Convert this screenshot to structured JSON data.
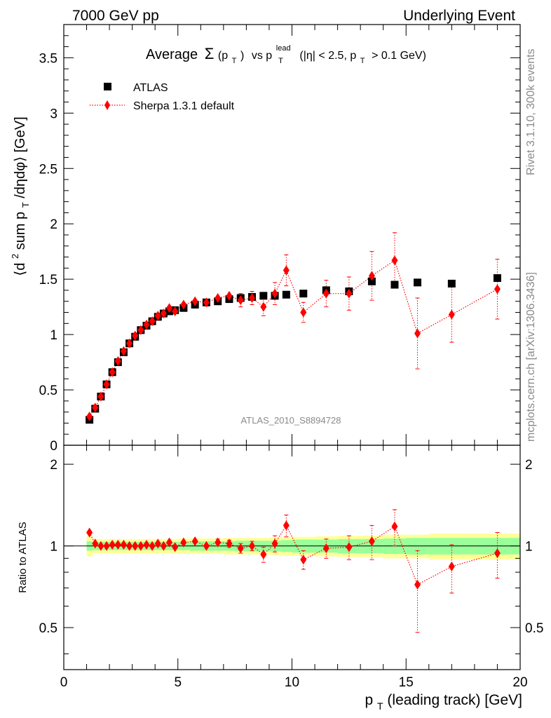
{
  "header": {
    "left": "7000 GeV pp",
    "right": "Underlying Event"
  },
  "side_labels": {
    "top": "Rivet 3.1.10,  300k events",
    "bottom": "mcplots.cern.ch [arXiv:1306.3436]"
  },
  "title": {
    "prefix": "Average",
    "sigma": "Σ",
    "pt_arg": "(p",
    "pt_sub": "T",
    "pt_close": ")",
    "vs": "vs p",
    "lead_sup": "lead",
    "lead_sub": "T",
    "cuts_a": "(|η| < 2.5, p",
    "cuts_sub": "T",
    "cuts_b": "> 0.1 GeV)"
  },
  "analysis_id": "ATLAS_2010_S8894728",
  "chart_data": [
    {
      "type": "scatter",
      "panel": "main",
      "ylabel_parts": {
        "a": "⟨d",
        "sup": "2",
        "b": " sum p",
        "sub": "T",
        "c": "/dηdφ⟩ [GeV]"
      },
      "xlim": [
        0,
        20
      ],
      "ylim": [
        0,
        3.8
      ],
      "y_ticks": [
        "0",
        "0.5",
        "1",
        "1.5",
        "2",
        "2.5",
        "3",
        "3.5"
      ],
      "legend_position": "top-left",
      "series": [
        {
          "name": "ATLAS",
          "marker": "square",
          "color": "#000000",
          "x": [
            1.125,
            1.375,
            1.625,
            1.875,
            2.125,
            2.375,
            2.625,
            2.875,
            3.125,
            3.375,
            3.625,
            3.875,
            4.125,
            4.375,
            4.625,
            4.875,
            5.25,
            5.75,
            6.25,
            6.75,
            7.25,
            7.75,
            8.25,
            8.75,
            9.25,
            9.75,
            10.5,
            11.5,
            12.5,
            13.5,
            14.5,
            15.5,
            17.0,
            19.0
          ],
          "y": [
            0.23,
            0.33,
            0.44,
            0.55,
            0.66,
            0.75,
            0.84,
            0.92,
            0.98,
            1.04,
            1.08,
            1.12,
            1.16,
            1.19,
            1.21,
            1.22,
            1.24,
            1.27,
            1.29,
            1.3,
            1.32,
            1.33,
            1.34,
            1.35,
            1.35,
            1.36,
            1.37,
            1.4,
            1.39,
            1.48,
            1.45,
            1.47,
            1.46,
            1.51
          ]
        },
        {
          "name": "Sherpa 1.3.1 default",
          "marker": "diamond",
          "line": "dotted",
          "color": "#ff0000",
          "x": [
            1.125,
            1.375,
            1.625,
            1.875,
            2.125,
            2.375,
            2.625,
            2.875,
            3.125,
            3.375,
            3.625,
            3.875,
            4.125,
            4.375,
            4.625,
            4.875,
            5.25,
            5.75,
            6.25,
            6.75,
            7.25,
            7.75,
            8.25,
            8.75,
            9.25,
            9.75,
            10.5,
            11.5,
            12.5,
            13.5,
            14.5,
            15.5,
            17.0,
            19.0
          ],
          "y": [
            0.26,
            0.34,
            0.44,
            0.55,
            0.66,
            0.76,
            0.85,
            0.92,
            0.99,
            1.04,
            1.09,
            1.12,
            1.17,
            1.19,
            1.24,
            1.21,
            1.27,
            1.3,
            1.29,
            1.33,
            1.35,
            1.31,
            1.33,
            1.25,
            1.37,
            1.58,
            1.2,
            1.37,
            1.37,
            1.53,
            1.67,
            1.01,
            1.18,
            1.41
          ],
          "err": [
            0.01,
            0.01,
            0.01,
            0.01,
            0.01,
            0.01,
            0.01,
            0.01,
            0.01,
            0.01,
            0.01,
            0.01,
            0.02,
            0.02,
            0.03,
            0.03,
            0.03,
            0.03,
            0.03,
            0.04,
            0.04,
            0.06,
            0.06,
            0.08,
            0.1,
            0.14,
            0.09,
            0.12,
            0.15,
            0.22,
            0.25,
            0.32,
            0.25,
            0.27
          ]
        }
      ]
    },
    {
      "type": "scatter",
      "panel": "ratio",
      "ylabel": "Ratio to ATLAS",
      "xlabel_parts": {
        "a": "p",
        "sub": "T",
        "b": " (leading track) [GeV]"
      },
      "xlim": [
        0,
        20
      ],
      "ylim": [
        0.35,
        2.35
      ],
      "y_ticks": [
        "0.5",
        "1",
        "2"
      ],
      "x_ticks": [
        "0",
        "5",
        "10",
        "15",
        "20"
      ],
      "bands": {
        "x_edges": [
          1.0,
          1.25,
          1.5,
          1.75,
          2.0,
          2.25,
          2.5,
          2.75,
          3.0,
          3.25,
          3.5,
          3.75,
          4.0,
          4.25,
          4.5,
          4.75,
          5.0,
          5.5,
          6.0,
          6.5,
          7.0,
          7.5,
          8.0,
          8.5,
          9.0,
          9.5,
          10.0,
          11.0,
          12.0,
          13.0,
          14.0,
          15.0,
          16.0,
          18.0,
          20.0
        ],
        "green_halfwidth": [
          0.04,
          0.035,
          0.035,
          0.035,
          0.035,
          0.035,
          0.035,
          0.035,
          0.035,
          0.035,
          0.035,
          0.035,
          0.035,
          0.035,
          0.035,
          0.035,
          0.035,
          0.04,
          0.04,
          0.04,
          0.04,
          0.045,
          0.045,
          0.045,
          0.045,
          0.05,
          0.055,
          0.055,
          0.06,
          0.06,
          0.065,
          0.07,
          0.07,
          0.07
        ],
        "yellow_halfwidth": [
          0.085,
          0.06,
          0.06,
          0.06,
          0.06,
          0.06,
          0.06,
          0.06,
          0.06,
          0.06,
          0.06,
          0.06,
          0.06,
          0.06,
          0.06,
          0.06,
          0.065,
          0.065,
          0.065,
          0.065,
          0.07,
          0.07,
          0.07,
          0.07,
          0.075,
          0.08,
          0.08,
          0.085,
          0.09,
          0.09,
          0.1,
          0.1,
          0.11,
          0.11
        ],
        "green_color": "#99ff99",
        "yellow_color": "#ffff99"
      },
      "series": [
        {
          "name": "Sherpa 1.3.1 default",
          "color": "#ff0000",
          "x": [
            1.125,
            1.375,
            1.625,
            1.875,
            2.125,
            2.375,
            2.625,
            2.875,
            3.125,
            3.375,
            3.625,
            3.875,
            4.125,
            4.375,
            4.625,
            4.875,
            5.25,
            5.75,
            6.25,
            6.75,
            7.25,
            7.75,
            8.25,
            8.75,
            9.25,
            9.75,
            10.5,
            11.5,
            12.5,
            13.5,
            14.5,
            15.5,
            17.0,
            19.0
          ],
          "y": [
            1.12,
            1.02,
            1.0,
            1.0,
            1.01,
            1.01,
            1.01,
            1.0,
            1.0,
            1.0,
            1.01,
            1.0,
            1.02,
            1.0,
            1.03,
            0.99,
            1.03,
            1.04,
            1.0,
            1.03,
            1.02,
            0.98,
            1.0,
            0.93,
            1.02,
            1.19,
            0.89,
            0.98,
            0.99,
            1.04,
            1.18,
            0.72,
            0.84,
            0.94
          ],
          "err": [
            0.01,
            0.01,
            0.01,
            0.01,
            0.01,
            0.01,
            0.01,
            0.01,
            0.01,
            0.01,
            0.01,
            0.01,
            0.01,
            0.01,
            0.02,
            0.02,
            0.02,
            0.02,
            0.02,
            0.03,
            0.03,
            0.04,
            0.04,
            0.06,
            0.07,
            0.11,
            0.07,
            0.08,
            0.1,
            0.15,
            0.18,
            0.24,
            0.17,
            0.18
          ]
        }
      ]
    }
  ]
}
